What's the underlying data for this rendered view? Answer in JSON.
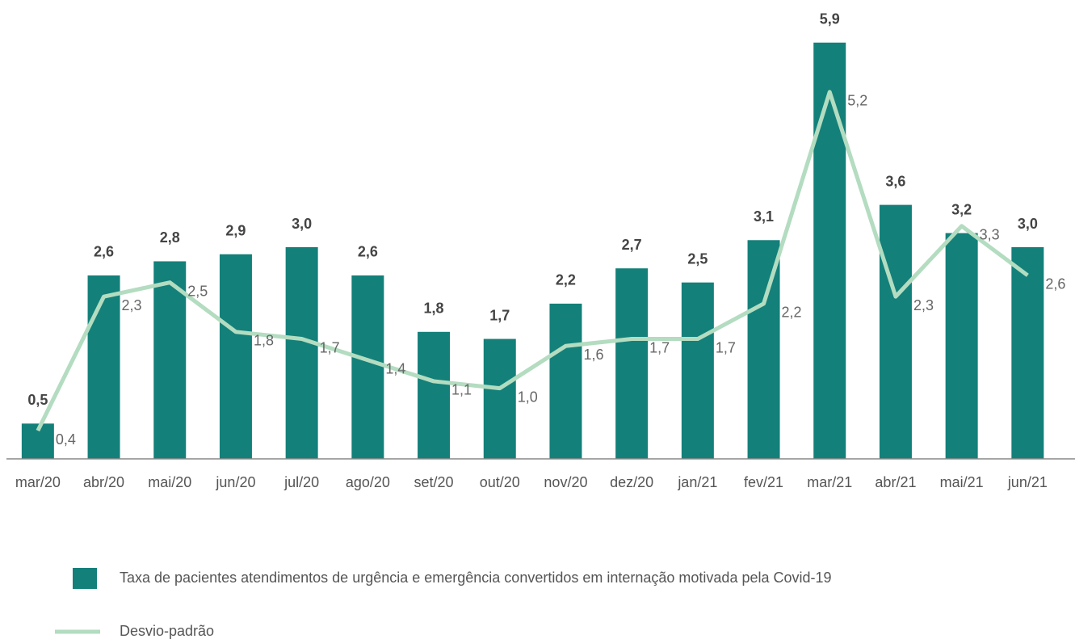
{
  "chart_data": {
    "type": "bar",
    "categories": [
      "mar/20",
      "abr/20",
      "mai/20",
      "jun/20",
      "jul/20",
      "ago/20",
      "set/20",
      "out/20",
      "nov/20",
      "dez/20",
      "jan/21",
      "fev/21",
      "mar/21",
      "abr/21",
      "mai/21",
      "jun/21"
    ],
    "series": [
      {
        "name": "Taxa de pacientes atendimentos de urgência e emergência convertidos em internação motivada pela Covid-19",
        "type": "bar",
        "color": "#13807a",
        "values": [
          0.5,
          2.6,
          2.8,
          2.9,
          3.0,
          2.6,
          1.8,
          1.7,
          2.2,
          2.7,
          2.5,
          3.1,
          5.9,
          3.6,
          3.2,
          3.0
        ],
        "value_labels": [
          "0,5",
          "2,6",
          "2,8",
          "2,9",
          "3,0",
          "2,6",
          "1,8",
          "1,7",
          "2,2",
          "2,7",
          "2,5",
          "3,1",
          "5,9",
          "3,6",
          "3,2",
          "3,0"
        ]
      },
      {
        "name": "Desvio-padrão",
        "type": "line",
        "color": "#b3dcc0",
        "values": [
          0.4,
          2.3,
          2.5,
          1.8,
          1.7,
          1.4,
          1.1,
          1.0,
          1.6,
          1.7,
          1.7,
          2.2,
          5.2,
          2.3,
          3.3,
          2.6
        ],
        "value_labels": [
          "0,4",
          "2,3",
          "2,5",
          "1,8",
          "1,7",
          "1,4",
          "1,1",
          "1,0",
          "1,6",
          "1,7",
          "1,7",
          "2,2",
          "5,2",
          "2,3",
          "3,3",
          "2,6"
        ]
      }
    ],
    "ylim": [
      0,
      6
    ],
    "legend": "bottom"
  }
}
